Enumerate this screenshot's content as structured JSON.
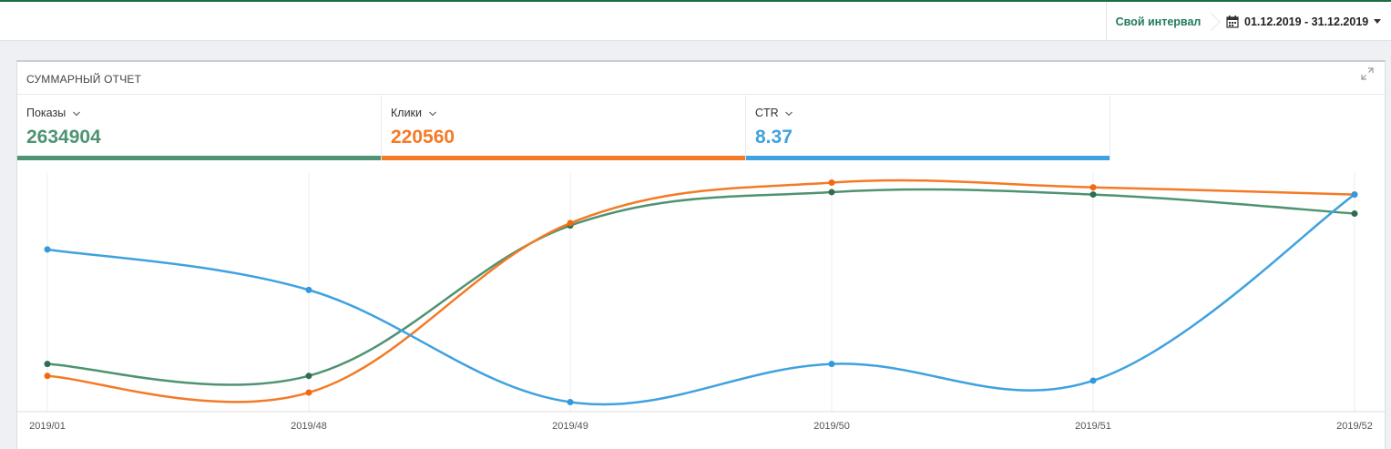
{
  "header": {
    "interval_label": "Свой интервал",
    "date_range": "01.12.2019 - 31.12.2019",
    "calendar_icon": "calendar-icon",
    "dropdown_icon": "caret-down-icon"
  },
  "panel": {
    "title": "СУММАРНЫЙ ОТЧЕТ",
    "expand_icon": "expand-icon"
  },
  "metrics": [
    {
      "label": "Показы",
      "value": "2634904",
      "color": "#4e9372"
    },
    {
      "label": "Клики",
      "value": "220560",
      "color": "#f47a25"
    },
    {
      "label": "CTR",
      "value": "8.37",
      "color": "#3fa2e0"
    }
  ],
  "chart_data": {
    "type": "line",
    "categories": [
      "2019/01",
      "2019/48",
      "2019/49",
      "2019/50",
      "2019/51",
      "2019/52"
    ],
    "y_axis_labels_shown": false,
    "grid": "vertical",
    "relative_levels_note_free": true,
    "series": [
      {
        "name": "Показы",
        "color": "#4e9372",
        "values": [
          0.8,
          0.75,
          1.38,
          1.52,
          1.51,
          1.43
        ]
      },
      {
        "name": "Клики",
        "color": "#f47a25",
        "values": [
          0.75,
          0.68,
          1.39,
          1.56,
          1.54,
          1.51
        ]
      },
      {
        "name": "CTR",
        "color": "#3fa2e0",
        "values": [
          1.28,
          1.11,
          0.64,
          0.8,
          0.73,
          1.51
        ]
      }
    ]
  }
}
